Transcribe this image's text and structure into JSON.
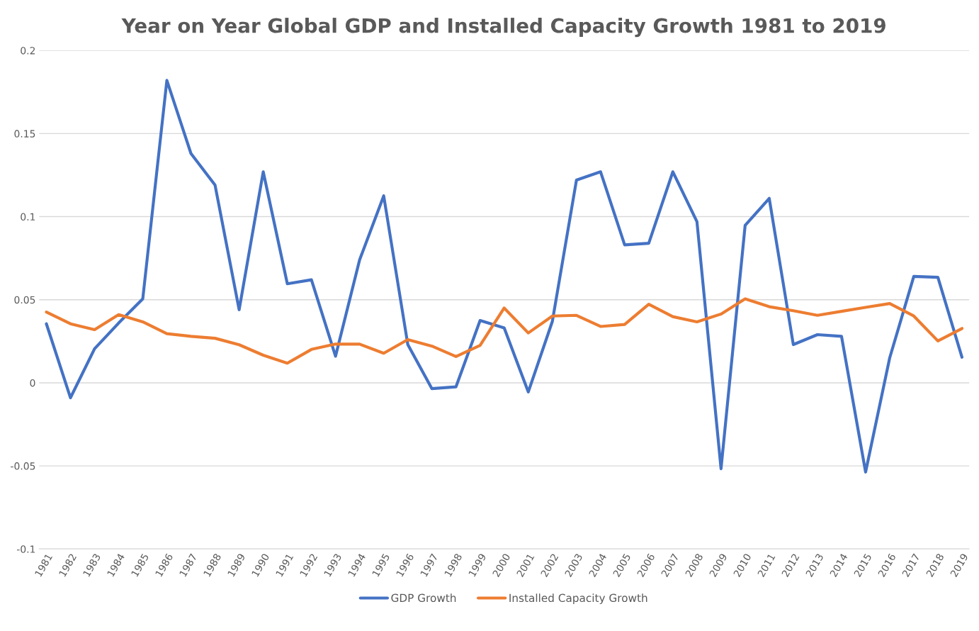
{
  "chart_data": {
    "type": "line",
    "title": "Year on Year Global GDP and Installed Capacity Growth 1981 to 2019",
    "categories": [
      "1981",
      "1982",
      "1983",
      "1984",
      "1985",
      "1986",
      "1987",
      "1988",
      "1989",
      "1990",
      "1991",
      "1992",
      "1993",
      "1994",
      "1995",
      "1996",
      "1997",
      "1998",
      "1999",
      "2000",
      "2001",
      "2002",
      "2003",
      "2004",
      "2005",
      "2006",
      "2007",
      "2008",
      "2009",
      "2010",
      "2011",
      "2012",
      "2013",
      "2014",
      "2015",
      "2016",
      "2017",
      "2018",
      "2019"
    ],
    "series": [
      {
        "name": "GDP Growth",
        "color": "#4472c4",
        "values": [
          0.0355,
          -0.009,
          0.0205,
          0.036,
          0.0505,
          0.182,
          0.138,
          0.119,
          0.044,
          0.127,
          0.0596,
          0.062,
          0.016,
          0.074,
          0.1125,
          0.023,
          -0.0035,
          -0.0024,
          0.0375,
          0.033,
          -0.0055,
          0.037,
          0.122,
          0.127,
          0.083,
          0.084,
          0.127,
          0.097,
          -0.0517,
          0.0947,
          0.111,
          0.023,
          0.029,
          0.028,
          -0.0537,
          0.015,
          0.064,
          0.0635,
          0.0154
        ]
      },
      {
        "name": "Installed Capacity Growth",
        "color": "#ed7d31",
        "values": [
          0.0426,
          0.0355,
          0.032,
          0.041,
          0.0367,
          0.0296,
          0.028,
          0.0268,
          0.0229,
          0.0166,
          0.0118,
          0.0201,
          0.0233,
          0.0233,
          0.0178,
          0.026,
          0.0221,
          0.0158,
          0.0225,
          0.045,
          0.03,
          0.0402,
          0.0406,
          0.0339,
          0.0351,
          0.0473,
          0.0398,
          0.0367,
          0.0414,
          0.0505,
          0.0458,
          0.0434,
          0.0406,
          0.043,
          0.0454,
          0.0477,
          0.0402,
          0.0252,
          0.0327
        ]
      }
    ],
    "ylim": [
      -0.1,
      0.2
    ],
    "yticks": [
      -0.1,
      -0.05,
      0,
      0.05,
      0.1,
      0.15,
      0.2
    ],
    "grid": "y",
    "legend": "bottom",
    "marker": "none",
    "line_style": "solid"
  }
}
